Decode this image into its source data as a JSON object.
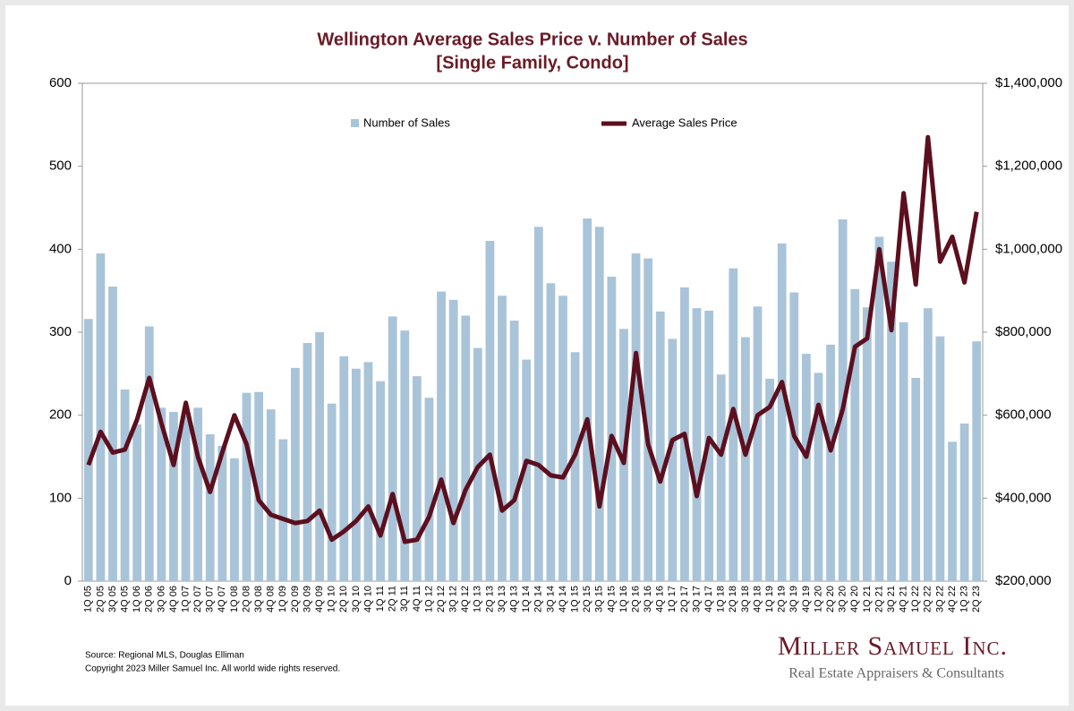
{
  "chart_data": {
    "type": "combo",
    "title": "Wellington Average Sales Price v. Number of Sales",
    "subtitle": "[Single Family, Condo]",
    "categories": [
      "1Q 05",
      "2Q 05",
      "3Q 05",
      "4Q 05",
      "1Q 06",
      "2Q 06",
      "3Q 06",
      "4Q 06",
      "1Q 07",
      "2Q 07",
      "3Q 07",
      "4Q 07",
      "1Q 08",
      "2Q 08",
      "3Q 08",
      "4Q 08",
      "1Q 09",
      "2Q 09",
      "3Q 09",
      "4Q 09",
      "1Q 10",
      "2Q 10",
      "3Q 10",
      "4Q 10",
      "1Q 11",
      "2Q 11",
      "3Q 11",
      "4Q 11",
      "1Q 12",
      "2Q 12",
      "3Q 12",
      "4Q 12",
      "1Q 13",
      "2Q 13",
      "3Q 13",
      "4Q 13",
      "1Q 14",
      "2Q 14",
      "3Q 14",
      "4Q 14",
      "1Q 15",
      "2Q 15",
      "3Q 15",
      "4Q 15",
      "1Q 16",
      "2Q 16",
      "3Q 16",
      "4Q 16",
      "1Q 17",
      "2Q 17",
      "3Q 17",
      "4Q 17",
      "1Q 18",
      "2Q 18",
      "3Q 18",
      "4Q 18",
      "1Q 19",
      "2Q 19",
      "3Q 19",
      "4Q 19",
      "1Q 20",
      "2Q 20",
      "3Q 20",
      "4Q 20",
      "1Q 21",
      "2Q 21",
      "3Q 21",
      "4Q 21",
      "1Q 22",
      "2Q 22",
      "3Q 22",
      "4Q 22",
      "1Q 23",
      "2Q 23"
    ],
    "series": [
      {
        "name": "Number of Sales",
        "type": "bar",
        "color": "#a9c4d9",
        "values": [
          316,
          395,
          355,
          231,
          189,
          307,
          209,
          204,
          200,
          209,
          177,
          163,
          148,
          227,
          228,
          207,
          171,
          257,
          287,
          300,
          214,
          271,
          256,
          264,
          241,
          319,
          302,
          247,
          221,
          349,
          339,
          320,
          281,
          410,
          344,
          314,
          267,
          427,
          359,
          344,
          276,
          437,
          427,
          367,
          304,
          395,
          389,
          325,
          292,
          354,
          329,
          326,
          249,
          377,
          294,
          331,
          244,
          407,
          348,
          274,
          251,
          285,
          436,
          352,
          330,
          415,
          385,
          312,
          245,
          329,
          295,
          168,
          190,
          289
        ]
      },
      {
        "name": "Average Sales Price",
        "type": "line",
        "axis": "y2",
        "color": "#5c0f1e",
        "values": [
          480000,
          560000,
          510000,
          517000,
          590000,
          690000,
          580000,
          480000,
          630000,
          500000,
          415000,
          510000,
          600000,
          530000,
          395000,
          360000,
          350000,
          340000,
          345000,
          370000,
          300000,
          320000,
          345000,
          380000,
          310000,
          410000,
          295000,
          300000,
          355000,
          445000,
          340000,
          420000,
          475000,
          505000,
          370000,
          395000,
          490000,
          480000,
          455000,
          450000,
          505000,
          590000,
          380000,
          550000,
          485000,
          750000,
          530000,
          440000,
          540000,
          555000,
          405000,
          545000,
          505000,
          615000,
          505000,
          600000,
          620000,
          680000,
          550000,
          500000,
          625000,
          515000,
          615000,
          765000,
          785000,
          1000000,
          805000,
          1135000,
          915000,
          1270000,
          970000,
          1030000,
          920000,
          1090000
        ]
      }
    ],
    "ylim": [
      0,
      600
    ],
    "yticks": [
      0,
      100,
      200,
      300,
      400,
      500,
      600
    ],
    "y2lim": [
      200000,
      1400000
    ],
    "y2ticks": [
      {
        "value": 200000,
        "label": "$200,000"
      },
      {
        "value": 400000,
        "label": "$400,000"
      },
      {
        "value": 600000,
        "label": "$600,000"
      },
      {
        "value": 800000,
        "label": "$800,000"
      },
      {
        "value": 1000000,
        "label": "$1,000,000"
      },
      {
        "value": 1200000,
        "label": "$1,200,000"
      },
      {
        "value": 1400000,
        "label": "$1,400,000"
      }
    ],
    "source": "Source: Regional MLS, Douglas Elliman",
    "copyright": "Copyright 2023 Miller Samuel Inc.  All world wide rights reserved.",
    "logo_name": "Miller Samuel Inc.",
    "logo_tagline": "Real Estate Appraisers & Consultants"
  }
}
